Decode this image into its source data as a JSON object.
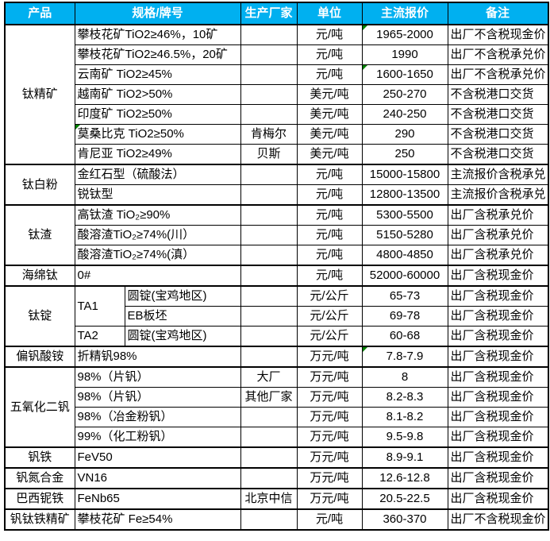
{
  "colors": {
    "header_background": "#00B0F0",
    "header_text": "#ffffff",
    "grid_border": "#000000",
    "error_flag_green": "#008000",
    "cell_background": "#ffffff"
  },
  "table": {
    "headers": [
      {
        "label": "产品"
      },
      {
        "label": "规格/牌号",
        "colspan": 2
      },
      {
        "label": "生产厂家"
      },
      {
        "label": "单位"
      },
      {
        "label": "主流报价"
      },
      {
        "label": "备注"
      }
    ],
    "rows": [
      {
        "product": "钛精矿",
        "product_span": 7,
        "spec": "攀枝花矿TiO2≥46%，10矿",
        "producer": "",
        "unit": "元/吨",
        "price": "1965-2000",
        "note": "出厂不含税现金价",
        "price_flag": true,
        "group_start": true
      },
      {
        "spec": "攀枝花矿TiO2≥46.5%，20矿",
        "producer": "",
        "unit": "元/吨",
        "price": "1990",
        "note": "出厂不含税承兑价"
      },
      {
        "spec": "云南矿 TiO2≥45%",
        "producer": "",
        "unit": "元/吨",
        "price": "1600-1650",
        "note": "出厂不含税承兑价",
        "price_flag": true
      },
      {
        "spec": "越南矿 TiO2>50%",
        "producer": "",
        "unit": "美元/吨",
        "price": "250-270",
        "note": "不含税港口交货"
      },
      {
        "spec": "印度矿 TiO2≥50%",
        "producer": "",
        "unit": "美元/吨",
        "price": "240-250",
        "note": "不含税港口交货"
      },
      {
        "spec": "莫桑比克 TiO2≥50%",
        "producer": "肯梅尔",
        "unit": "美元/吨",
        "price": "290",
        "note": "不含税港口交货",
        "spec_flag": true
      },
      {
        "spec": "肯尼亚 TiO2≥49%",
        "producer": "贝斯",
        "unit": "美元/吨",
        "price": "250",
        "note": "不含税港口交货"
      },
      {
        "product": "钛白粉",
        "product_span": 2,
        "spec": "金红石型（硫酸法）",
        "producer": "",
        "unit": "元/吨",
        "price": "15000-15800",
        "note": "主流报价含税承兑",
        "group_start": true
      },
      {
        "spec": "锐钛型",
        "producer": "",
        "unit": "元/吨",
        "price": "12800-13500",
        "note": "主流报价含税承兑"
      },
      {
        "product": "钛渣",
        "product_span": 3,
        "spec": "高钛渣 TiO₂≥90%",
        "producer": "",
        "unit": "元/吨",
        "price": "5300-5500",
        "note": "出厂含税承兑价",
        "group_start": true
      },
      {
        "spec": "酸溶渣TiO₂≥74%(川）",
        "producer": "",
        "unit": "元/吨",
        "price": "5150-5280",
        "note": "出厂含税承兑价"
      },
      {
        "spec": "酸溶渣TiO₂≥74%(滇）",
        "producer": "",
        "unit": "元/吨",
        "price": "4800-4850",
        "note": "出厂含税承兑价"
      },
      {
        "product": "海绵钛",
        "product_span": 1,
        "spec": "0#",
        "producer": "",
        "unit": "元/吨",
        "price": "52000-60000",
        "note": "出厂含税现金价",
        "group_start": true
      },
      {
        "product": "钛锭",
        "product_span": 3,
        "spec": "TA1",
        "spec_rowspan": 2,
        "spec2": "圆锭(宝鸡地区)",
        "producer": "",
        "unit": "元/公斤",
        "price": "65-73",
        "note": "出厂含税现金价",
        "group_start": true
      },
      {
        "spec": null,
        "spec2": "EB板坯",
        "producer": "",
        "unit": "元/公斤",
        "price": "69-78",
        "note": "出厂含税现金价"
      },
      {
        "spec": "TA2",
        "spec2": "圆锭(宝鸡地区)",
        "producer": "",
        "unit": "元/公斤",
        "price": "60-68",
        "note": "出厂含税现金价"
      },
      {
        "product": "偏钒酸铵",
        "product_span": 1,
        "spec": "折精钒98%",
        "producer": "",
        "unit": "万元/吨",
        "price": "7.8-7.9",
        "note": "出厂含税现金价",
        "price_flag": true,
        "group_start": true
      },
      {
        "product": "五氧化二钒",
        "product_span": 4,
        "spec": "98%（片钒）",
        "producer": "大厂",
        "unit": "万元/吨",
        "price": "8",
        "note": "出厂含税现金价",
        "group_start": true
      },
      {
        "spec": "98%（片钒）",
        "producer": "其他厂家",
        "unit": "万元/吨",
        "price": "8.2-8.3",
        "note": "出厂含税现金价"
      },
      {
        "spec": "98%（冶金粉钒）",
        "producer": "",
        "unit": "万元/吨",
        "price": "8.1-8.2",
        "note": "出厂含税现金价"
      },
      {
        "spec": "99%（化工粉钒）",
        "producer": "",
        "unit": "万元/吨",
        "price": "9.5-9.8",
        "note": "出厂含税现金价"
      },
      {
        "product": "钒铁",
        "product_span": 1,
        "spec": "FeV50",
        "producer": "",
        "unit": "万元/吨",
        "price": "8.9-9.1",
        "note": "出厂含税现金价",
        "group_start": true
      },
      {
        "product": "钒氮合金",
        "product_span": 1,
        "spec": "VN16",
        "producer": "",
        "unit": "万元/吨",
        "price": "12.6-12.8",
        "note": "出厂含税现金价",
        "group_start": true
      },
      {
        "product": "巴西铌铁",
        "product_span": 1,
        "spec": "FeNb65",
        "producer": "北京中信",
        "unit": "万元/吨",
        "price": "20.5-22.5",
        "note": "出厂含税现金价",
        "group_start": true
      },
      {
        "product": "钒钛铁精矿",
        "product_span": 1,
        "spec": "攀枝花矿 Fe≥54%",
        "producer": "",
        "unit": "元/吨",
        "price": "360-370",
        "note": "出厂不含税现金价",
        "group_start": true
      }
    ]
  }
}
